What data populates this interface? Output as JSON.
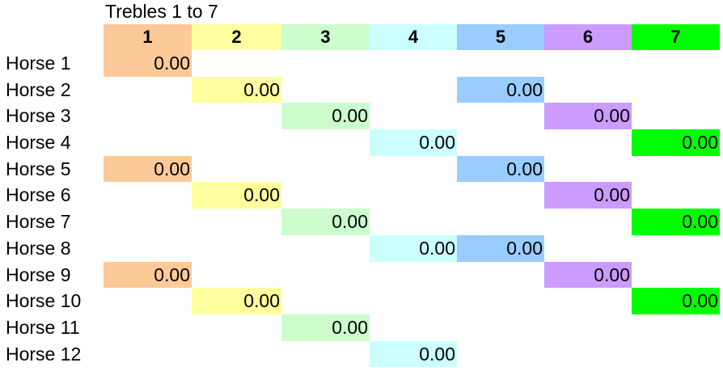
{
  "sheet": {
    "title": "Trebles 1 to 7"
  },
  "columns": [
    {
      "label": "1",
      "color": "#fdc998"
    },
    {
      "label": "2",
      "color": "#fefe9e"
    },
    {
      "label": "3",
      "color": "#ccfccc"
    },
    {
      "label": "4",
      "color": "#ccffff"
    },
    {
      "label": "5",
      "color": "#99ccff"
    },
    {
      "label": "6",
      "color": "#cc9bfe"
    },
    {
      "label": "7",
      "color": "#00ff00"
    }
  ],
  "rows": [
    {
      "label": "Horse 1",
      "cells": [
        {
          "col": 0,
          "value": "0.00"
        }
      ]
    },
    {
      "label": "Horse 2",
      "cells": [
        {
          "col": 1,
          "value": "0.00"
        },
        {
          "col": 4,
          "value": "0.00"
        }
      ]
    },
    {
      "label": "Horse 3",
      "cells": [
        {
          "col": 2,
          "value": "0.00"
        },
        {
          "col": 5,
          "value": "0.00"
        }
      ]
    },
    {
      "label": "Horse 4",
      "cells": [
        {
          "col": 3,
          "value": "0.00"
        },
        {
          "col": 6,
          "value": "0.00"
        }
      ]
    },
    {
      "label": "Horse 5",
      "cells": [
        {
          "col": 0,
          "value": "0.00"
        },
        {
          "col": 4,
          "value": "0.00"
        }
      ]
    },
    {
      "label": "Horse 6",
      "cells": [
        {
          "col": 1,
          "value": "0.00"
        },
        {
          "col": 5,
          "value": "0.00"
        }
      ]
    },
    {
      "label": "Horse 7",
      "cells": [
        {
          "col": 2,
          "value": "0.00"
        },
        {
          "col": 6,
          "value": "0.00"
        }
      ]
    },
    {
      "label": "Horse 8",
      "cells": [
        {
          "col": 3,
          "value": "0.00"
        },
        {
          "col": 4,
          "value": "0.00"
        }
      ]
    },
    {
      "label": "Horse 9",
      "cells": [
        {
          "col": 0,
          "value": "0.00"
        },
        {
          "col": 5,
          "value": "0.00"
        }
      ]
    },
    {
      "label": "Horse 10",
      "cells": [
        {
          "col": 1,
          "value": "0.00"
        },
        {
          "col": 6,
          "value": "0.00"
        }
      ]
    },
    {
      "label": "Horse 11",
      "cells": [
        {
          "col": 2,
          "value": "0.00"
        }
      ]
    },
    {
      "label": "Horse 12",
      "cells": [
        {
          "col": 3,
          "value": "0.00"
        }
      ]
    }
  ]
}
